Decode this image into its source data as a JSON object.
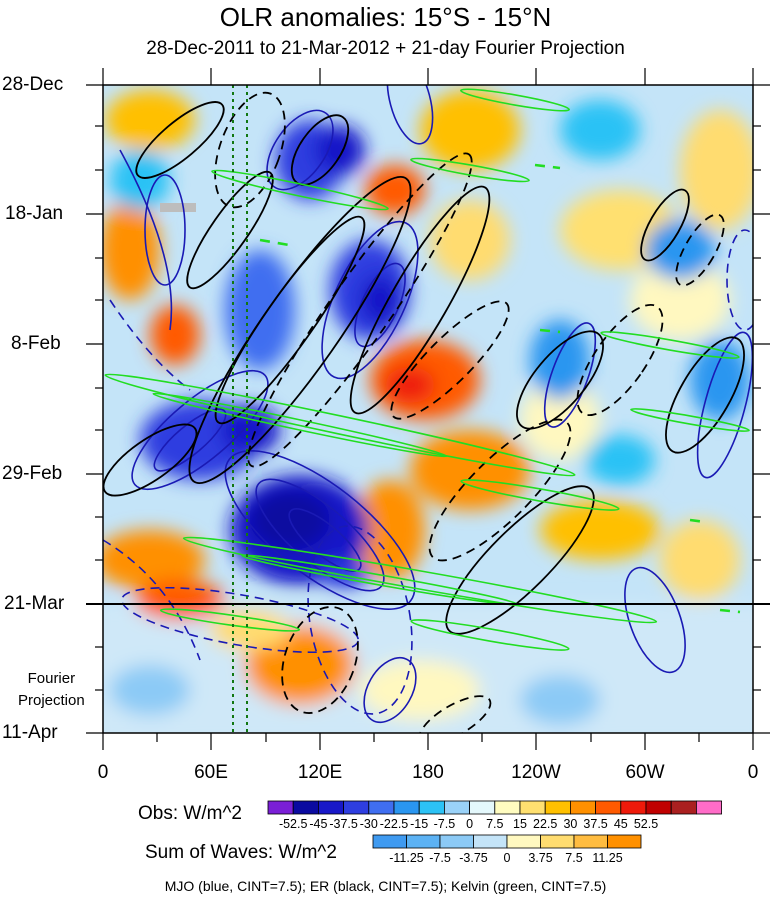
{
  "chart_data": {
    "type": "heatmap",
    "title": "OLR anomalies: 15°S - 15°N",
    "subtitle": "28-Dec-2011 to 21-Mar-2012 + 21-day Fourier Projection",
    "y_ticks": [
      "28-Dec",
      "18-Jan",
      "8-Feb",
      "29-Feb",
      "21-Mar",
      "11-Apr"
    ],
    "x_ticks": [
      "0",
      "60E",
      "120E",
      "180",
      "120W",
      "60W",
      "0"
    ],
    "fourier_label": [
      "Fourier",
      "Projection"
    ],
    "obs_colorbar": {
      "title": "Obs: W/m^2",
      "levels": [
        "-52.5",
        "-45",
        "-37.5",
        "-30",
        "-22.5",
        "-15",
        "-7.5",
        "0",
        "7.5",
        "15",
        "22.5",
        "30",
        "37.5",
        "45",
        "52.5"
      ],
      "colors": [
        "#7a1fd6",
        "#0a0aa0",
        "#1818c8",
        "#2e3ee0",
        "#3f6ef0",
        "#2a96f0",
        "#2cc2f5",
        "#9ad2f8",
        "#e4f8fc",
        "#fffcc0",
        "#ffe070",
        "#ffc000",
        "#ff9000",
        "#ff5a00",
        "#ee1a0a",
        "#c00000",
        "#aa2020",
        "#ff6cc8"
      ]
    },
    "sum_colorbar": {
      "title": "Sum of Waves: W/m^2",
      "levels": [
        "-11.25",
        "-7.5",
        "-3.75",
        "0",
        "3.75",
        "7.5",
        "11.25"
      ],
      "colors": [
        "#3f9af0",
        "#5cb2f4",
        "#8ccaf6",
        "#c4e4f8",
        "#fff8c0",
        "#ffdc70",
        "#ffbc40",
        "#ff9000"
      ]
    },
    "caption": "MJO (blue, CINT=7.5); ER (black, CINT=7.5); Kelvin (green, CINT=7.5)",
    "series": [
      {
        "name": "MJO",
        "color": "#1a1ab4"
      },
      {
        "name": "ER",
        "color": "#000000"
      },
      {
        "name": "Kelvin",
        "color": "#22dd22"
      }
    ]
  }
}
